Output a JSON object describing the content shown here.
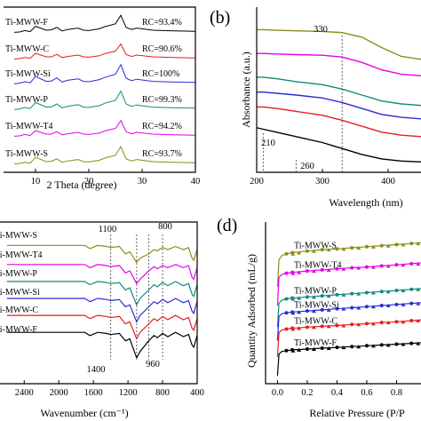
{
  "colors": {
    "S": "#8c8c14",
    "T4": "#e600e6",
    "P": "#108a7c",
    "Si": "#2b2bd6",
    "C": "#e61e1e",
    "F": "#000000"
  },
  "panels": {
    "b": {
      "label": "(b)"
    },
    "d": {
      "label": "(d)"
    }
  },
  "chart_data": [
    {
      "panel": "a",
      "type": "line",
      "xlabel": "2 Theta (degree)",
      "ylabel": "",
      "xlim": [
        4,
        40
      ],
      "xticks": [
        "10",
        "20",
        "30",
        "40"
      ],
      "series": [
        {
          "name": "Ti-MWW-S",
          "rc": "RC=93.7%",
          "color_key": "S",
          "offset": 5,
          "y": [
            0.2,
            0.25,
            0.4,
            0.3,
            1.1,
            0.5,
            0.55,
            0.9,
            0.4,
            0.6,
            0.8,
            0.5,
            0.45,
            0.7,
            1.0,
            1.4,
            2.6,
            0.9,
            0.6,
            0.8,
            0.5,
            0.4,
            0.35
          ]
        },
        {
          "name": "Ti-MWW-T4",
          "rc": "RC=94.2%",
          "color_key": "T4",
          "offset": 4,
          "y": [
            0.2,
            0.25,
            0.45,
            0.3,
            1.0,
            0.5,
            0.5,
            0.85,
            0.4,
            0.55,
            0.75,
            0.5,
            0.45,
            0.65,
            0.95,
            1.3,
            2.4,
            0.85,
            0.55,
            0.75,
            0.5,
            0.4,
            0.35
          ]
        },
        {
          "name": "Ti-MWW-P",
          "rc": "RC=99.3%",
          "color_key": "P",
          "offset": 3,
          "y": [
            0.2,
            0.3,
            0.5,
            0.35,
            1.2,
            0.55,
            0.6,
            1.0,
            0.45,
            0.65,
            0.9,
            0.55,
            0.5,
            0.75,
            1.1,
            1.5,
            2.8,
            1.0,
            0.65,
            0.85,
            0.55,
            0.45,
            0.4
          ]
        },
        {
          "name": "Ti-MWW-Si",
          "rc": "RC=100%",
          "color_key": "Si",
          "offset": 2,
          "y": [
            0.2,
            0.3,
            0.5,
            0.35,
            1.25,
            0.55,
            0.6,
            1.05,
            0.45,
            0.7,
            0.9,
            0.55,
            0.5,
            0.8,
            1.1,
            1.55,
            2.9,
            1.0,
            0.65,
            0.85,
            0.55,
            0.45,
            0.4
          ]
        },
        {
          "name": "Ti-MWW-C",
          "rc": "RC=90.6%",
          "color_key": "C",
          "offset": 1,
          "y": [
            0.2,
            0.25,
            0.4,
            0.3,
            1.0,
            0.5,
            0.5,
            0.85,
            0.4,
            0.55,
            0.75,
            0.5,
            0.45,
            0.65,
            0.95,
            1.3,
            2.3,
            0.85,
            0.55,
            0.75,
            0.5,
            0.4,
            0.35
          ]
        },
        {
          "name": "Ti-MWW-F",
          "rc": "RC=93.4%",
          "color_key": "F",
          "offset": 0,
          "y": [
            0.2,
            0.25,
            0.45,
            0.3,
            1.05,
            0.5,
            0.55,
            0.9,
            0.4,
            0.6,
            0.8,
            0.5,
            0.45,
            0.7,
            1.0,
            1.4,
            2.6,
            0.9,
            0.6,
            0.8,
            0.5,
            0.4,
            0.35
          ]
        }
      ],
      "x": [
        6,
        7,
        8,
        9,
        10,
        12,
        13,
        14,
        15,
        16,
        18,
        19,
        20,
        22,
        23,
        25,
        26,
        27,
        28,
        29,
        32,
        36,
        40
      ]
    },
    {
      "panel": "b",
      "type": "line",
      "xlabel": "Wavelength (nm)",
      "ylabel": "Absorbance (a.u.)",
      "xlim": [
        200,
        450
      ],
      "xticks": [
        "200",
        "300",
        "400"
      ],
      "annotations": [
        "330",
        "210",
        "260"
      ],
      "x": [
        200,
        210,
        230,
        260,
        300,
        330,
        360,
        390,
        420,
        450
      ],
      "series": [
        {
          "name": "Ti-MWW-S",
          "color_key": "S",
          "y": [
            4.8,
            4.8,
            4.78,
            4.76,
            4.74,
            4.7,
            4.55,
            4.2,
            3.9,
            3.8
          ]
        },
        {
          "name": "Ti-MWW-T4",
          "color_key": "T4",
          "y": [
            4.0,
            4.0,
            3.98,
            3.96,
            3.94,
            3.88,
            3.7,
            3.45,
            3.3,
            3.25
          ]
        },
        {
          "name": "Ti-MWW-P",
          "color_key": "P",
          "y": [
            3.2,
            3.2,
            3.15,
            3.05,
            2.95,
            2.8,
            2.6,
            2.4,
            2.3,
            2.25
          ]
        },
        {
          "name": "Ti-MWW-Si",
          "color_key": "Si",
          "y": [
            2.7,
            2.7,
            2.66,
            2.6,
            2.5,
            2.35,
            2.15,
            1.95,
            1.85,
            1.8
          ]
        },
        {
          "name": "Ti-MWW-C",
          "color_key": "C",
          "y": [
            2.2,
            2.2,
            2.15,
            2.05,
            1.92,
            1.75,
            1.55,
            1.35,
            1.25,
            1.2
          ]
        },
        {
          "name": "Ti-MWW-F",
          "color_key": "F",
          "y": [
            1.5,
            1.45,
            1.35,
            1.2,
            1.0,
            0.8,
            0.6,
            0.45,
            0.38,
            0.35
          ]
        }
      ]
    },
    {
      "panel": "c",
      "type": "line",
      "xlabel": "Wavenumber (cm⁻¹)",
      "ylabel": "",
      "xlim": [
        4000,
        400
      ],
      "xticks": [
        "2400",
        "2000",
        "1600",
        "1200",
        "800",
        "400"
      ],
      "annotations": [
        "1100",
        "800",
        "1400",
        "960"
      ],
      "x": [
        2600,
        2000,
        1700,
        1640,
        1550,
        1450,
        1400,
        1300,
        1230,
        1180,
        1100,
        1060,
        960,
        900,
        860,
        800,
        740,
        650,
        560,
        500,
        460,
        440,
        400
      ],
      "series": [
        {
          "name": "Ti-MWW-S",
          "color_key": "S",
          "y": [
            5.0,
            5.0,
            5.0,
            4.85,
            5.0,
            4.95,
            4.9,
            4.95,
            4.6,
            4.7,
            4.2,
            4.4,
            4.6,
            4.8,
            4.75,
            4.9,
            4.8,
            4.95,
            4.8,
            4.9,
            4.4,
            4.3,
            4.8
          ]
        },
        {
          "name": "Ti-MWW-T4",
          "color_key": "T4",
          "y": [
            4.1,
            4.1,
            4.1,
            3.95,
            4.1,
            4.05,
            4.0,
            4.05,
            3.7,
            3.8,
            3.2,
            3.4,
            3.8,
            4.0,
            3.9,
            4.05,
            3.95,
            4.1,
            3.95,
            4.05,
            3.5,
            3.4,
            3.95
          ]
        },
        {
          "name": "Ti-MWW-P",
          "color_key": "P",
          "y": [
            3.3,
            3.3,
            3.3,
            3.15,
            3.3,
            3.25,
            3.2,
            3.25,
            2.9,
            3.0,
            2.2,
            2.5,
            2.9,
            3.15,
            3.05,
            3.25,
            3.1,
            3.3,
            3.1,
            3.2,
            2.7,
            2.6,
            3.15
          ]
        },
        {
          "name": "Ti-MWW-Si",
          "color_key": "Si",
          "y": [
            2.5,
            2.5,
            2.5,
            2.35,
            2.5,
            2.45,
            2.4,
            2.45,
            2.1,
            2.2,
            1.4,
            1.7,
            2.1,
            2.35,
            2.25,
            2.45,
            2.3,
            2.5,
            2.3,
            2.4,
            1.9,
            1.8,
            2.35
          ]
        },
        {
          "name": "Ti-MWW-C",
          "color_key": "C",
          "y": [
            1.7,
            1.7,
            1.7,
            1.55,
            1.7,
            1.65,
            1.6,
            1.65,
            1.3,
            1.4,
            0.6,
            0.9,
            1.3,
            1.55,
            1.45,
            1.65,
            1.5,
            1.7,
            1.5,
            1.6,
            1.1,
            1.0,
            1.55
          ]
        },
        {
          "name": "Ti-MWW-F",
          "color_key": "F",
          "y": [
            0.9,
            0.9,
            0.9,
            0.75,
            0.9,
            0.85,
            0.8,
            0.85,
            0.5,
            0.6,
            -0.3,
            0.0,
            0.5,
            0.75,
            0.65,
            0.85,
            0.7,
            0.9,
            0.7,
            0.8,
            0.3,
            0.2,
            0.75
          ]
        }
      ]
    },
    {
      "panel": "d",
      "type": "line",
      "xlabel": "Relative Pressure (P/P",
      "ylabel": "Quantity Adsorbed (mL/g)",
      "xlim": [
        -0.05,
        1.0
      ],
      "xticks": [
        "0.0",
        "0.2",
        "0.4",
        "0.6",
        "0.8"
      ],
      "x": [
        0.0,
        0.01,
        0.03,
        0.06,
        0.1,
        0.2,
        0.3,
        0.4,
        0.5,
        0.6,
        0.7,
        0.8,
        0.9,
        1.0
      ],
      "series": [
        {
          "name": "Ti-MWW-S",
          "color_key": "S",
          "y": [
            4.6,
            5.6,
            5.75,
            5.82,
            5.86,
            5.92,
            5.97,
            6.0,
            6.04,
            6.08,
            6.12,
            6.16,
            6.2,
            6.25
          ]
        },
        {
          "name": "Ti-MWW-T4",
          "color_key": "T4",
          "y": [
            3.9,
            4.95,
            5.05,
            5.1,
            5.13,
            5.18,
            5.22,
            5.26,
            5.3,
            5.33,
            5.37,
            5.41,
            5.45,
            5.5
          ]
        },
        {
          "name": "Ti-MWW-P",
          "color_key": "P",
          "y": [
            3.1,
            4.0,
            4.1,
            4.15,
            4.18,
            4.22,
            4.26,
            4.3,
            4.34,
            4.38,
            4.42,
            4.46,
            4.5,
            4.55
          ]
        },
        {
          "name": "Ti-MWW-Si",
          "color_key": "Si",
          "y": [
            2.6,
            3.5,
            3.6,
            3.63,
            3.66,
            3.7,
            3.74,
            3.78,
            3.82,
            3.86,
            3.9,
            3.94,
            3.98,
            4.02
          ]
        },
        {
          "name": "Ti-MWW-C",
          "color_key": "C",
          "y": [
            2.0,
            2.9,
            3.0,
            3.03,
            3.06,
            3.1,
            3.13,
            3.16,
            3.2,
            3.23,
            3.27,
            3.3,
            3.34,
            3.38
          ]
        },
        {
          "name": "Ti-MWW-F",
          "color_key": "F",
          "y": [
            1.3,
            2.1,
            2.2,
            2.23,
            2.26,
            2.29,
            2.32,
            2.35,
            2.38,
            2.41,
            2.44,
            2.47,
            2.5,
            2.54
          ]
        }
      ]
    }
  ]
}
